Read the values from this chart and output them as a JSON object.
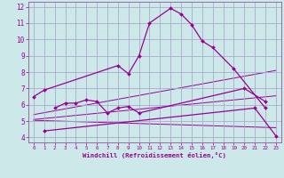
{
  "xlabel": "Windchill (Refroidissement éolien,°C)",
  "bg_color": "#cce8e8",
  "grid_color": "#aaaacc",
  "line_color": "#990099",
  "spine_color": "#9966aa",
  "xlim": [
    -0.5,
    23.5
  ],
  "ylim": [
    3.7,
    12.3
  ],
  "xticks": [
    0,
    1,
    2,
    3,
    4,
    5,
    6,
    7,
    8,
    9,
    10,
    11,
    12,
    13,
    14,
    15,
    16,
    17,
    18,
    19,
    20,
    21,
    22,
    23
  ],
  "yticks": [
    4,
    5,
    6,
    7,
    8,
    9,
    10,
    11,
    12
  ],
  "curve1_x": [
    0,
    1,
    8,
    9,
    10,
    11,
    13,
    14,
    15,
    16,
    17,
    19,
    22
  ],
  "curve1_y": [
    6.5,
    6.9,
    8.4,
    7.9,
    9.0,
    11.0,
    11.9,
    11.55,
    10.9,
    9.9,
    9.5,
    8.2,
    5.8
  ],
  "curve2_x": [
    2,
    3,
    4,
    5,
    6,
    7,
    8,
    9,
    10,
    20,
    22
  ],
  "curve2_y": [
    5.8,
    6.1,
    6.1,
    6.3,
    6.2,
    5.5,
    5.8,
    5.9,
    5.5,
    7.0,
    6.2
  ],
  "curve3_x": [
    1,
    21,
    23
  ],
  "curve3_y": [
    4.4,
    5.8,
    4.1
  ],
  "line1_x": [
    0,
    23
  ],
  "line1_y": [
    5.05,
    4.6
  ],
  "line2_x": [
    0,
    23
  ],
  "line2_y": [
    5.1,
    6.55
  ],
  "line3_x": [
    0,
    23
  ],
  "line3_y": [
    5.4,
    8.1
  ]
}
